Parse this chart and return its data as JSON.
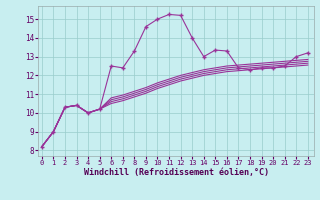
{
  "xlabel": "Windchill (Refroidissement éolien,°C)",
  "bg_color": "#c8eef0",
  "line_color": "#993399",
  "grid_color": "#99cccc",
  "x_ticks": [
    0,
    1,
    2,
    3,
    4,
    5,
    6,
    7,
    8,
    9,
    10,
    11,
    12,
    13,
    14,
    15,
    16,
    17,
    18,
    19,
    20,
    21,
    22,
    23
  ],
  "y_ticks": [
    8,
    9,
    10,
    11,
    12,
    13,
    14,
    15
  ],
  "ylim": [
    7.7,
    15.7
  ],
  "xlim": [
    -0.3,
    23.5
  ],
  "line1_x": [
    0,
    1,
    2,
    3,
    4,
    5,
    6,
    7,
    8,
    9,
    10,
    11,
    12,
    13,
    14,
    15,
    16,
    17,
    18,
    19,
    20,
    21,
    22,
    23
  ],
  "line1_y": [
    8.2,
    9.0,
    10.3,
    10.4,
    10.0,
    10.2,
    12.5,
    12.4,
    13.3,
    14.6,
    15.0,
    15.25,
    15.2,
    14.0,
    13.0,
    13.35,
    13.3,
    12.4,
    12.3,
    12.4,
    12.4,
    12.5,
    13.0,
    13.2
  ],
  "line2_x": [
    0,
    1,
    2,
    3,
    4,
    5,
    6,
    7,
    8,
    9,
    10,
    11,
    12,
    13,
    14,
    15,
    16,
    17,
    18,
    19,
    20,
    21,
    22,
    23
  ],
  "line2_y": [
    8.2,
    9.0,
    10.3,
    10.4,
    10.0,
    10.2,
    10.5,
    10.65,
    10.85,
    11.05,
    11.3,
    11.5,
    11.7,
    11.85,
    12.0,
    12.1,
    12.2,
    12.25,
    12.3,
    12.35,
    12.4,
    12.45,
    12.5,
    12.55
  ],
  "line3_x": [
    0,
    1,
    2,
    3,
    4,
    5,
    6,
    7,
    8,
    9,
    10,
    11,
    12,
    13,
    14,
    15,
    16,
    17,
    18,
    19,
    20,
    21,
    22,
    23
  ],
  "line3_y": [
    8.2,
    9.0,
    10.3,
    10.4,
    10.0,
    10.2,
    10.6,
    10.75,
    10.95,
    11.15,
    11.4,
    11.6,
    11.8,
    11.95,
    12.1,
    12.2,
    12.3,
    12.35,
    12.4,
    12.45,
    12.5,
    12.55,
    12.6,
    12.65
  ],
  "line4_x": [
    0,
    1,
    2,
    3,
    4,
    5,
    6,
    7,
    8,
    9,
    10,
    11,
    12,
    13,
    14,
    15,
    16,
    17,
    18,
    19,
    20,
    21,
    22,
    23
  ],
  "line4_y": [
    8.2,
    9.0,
    10.3,
    10.4,
    10.0,
    10.2,
    10.7,
    10.85,
    11.05,
    11.25,
    11.5,
    11.7,
    11.9,
    12.05,
    12.2,
    12.3,
    12.4,
    12.45,
    12.5,
    12.55,
    12.6,
    12.65,
    12.7,
    12.75
  ],
  "line5_x": [
    0,
    1,
    2,
    3,
    4,
    5,
    6,
    7,
    8,
    9,
    10,
    11,
    12,
    13,
    14,
    15,
    16,
    17,
    18,
    19,
    20,
    21,
    22,
    23
  ],
  "line5_y": [
    8.2,
    9.0,
    10.3,
    10.4,
    10.0,
    10.2,
    10.8,
    10.95,
    11.15,
    11.35,
    11.6,
    11.8,
    12.0,
    12.15,
    12.3,
    12.4,
    12.5,
    12.55,
    12.6,
    12.65,
    12.7,
    12.75,
    12.8,
    12.85
  ]
}
